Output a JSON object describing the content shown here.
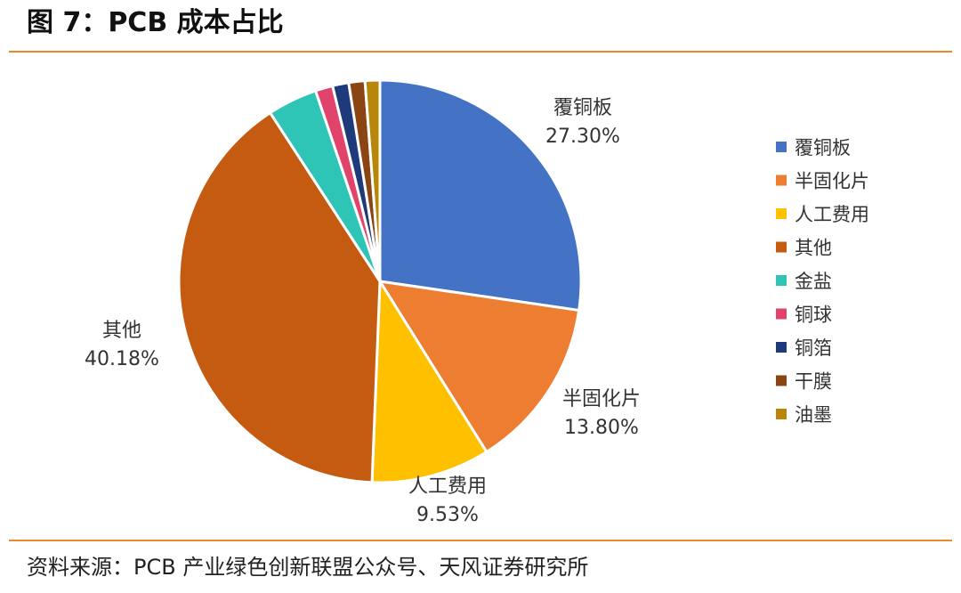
{
  "figure": {
    "title": "图 7：PCB 成本占比",
    "source": "资料来源：PCB 产业绿色创新联盟公众号、天风证券研究所"
  },
  "chart_data": {
    "type": "pie",
    "title": "",
    "legend_position": "right",
    "slices": [
      {
        "name": "覆铜板",
        "value": 27.3,
        "label": "27.30%",
        "color": "#4472C4",
        "show_label": true
      },
      {
        "name": "半固化片",
        "value": 13.8,
        "label": "13.80%",
        "color": "#ED7D31",
        "show_label": true
      },
      {
        "name": "人工费用",
        "value": 9.53,
        "label": "9.53%",
        "color": "#FFC000",
        "show_label": true
      },
      {
        "name": "其他",
        "value": 40.18,
        "label": "40.18%",
        "color": "#C55A11",
        "show_label": true
      },
      {
        "name": "金盐",
        "value": 4.0,
        "label": "",
        "color": "#2EC4B6",
        "show_label": false
      },
      {
        "name": "铜球",
        "value": 1.4,
        "label": "",
        "color": "#E0436B",
        "show_label": false
      },
      {
        "name": "铜箔",
        "value": 1.3,
        "label": "",
        "color": "#1F3A7A",
        "show_label": false
      },
      {
        "name": "干膜",
        "value": 1.3,
        "label": "",
        "color": "#8B4513",
        "show_label": false
      },
      {
        "name": "油墨",
        "value": 1.19,
        "label": "",
        "color": "#B8860B",
        "show_label": false
      }
    ]
  }
}
